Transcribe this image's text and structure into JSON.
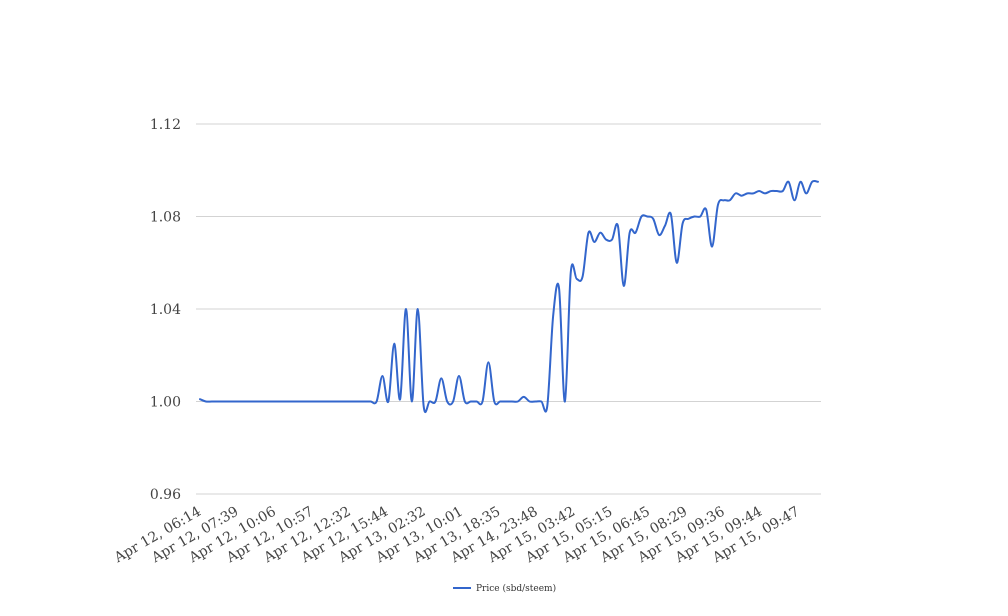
{
  "chart_data": {
    "type": "line",
    "title": "",
    "xlabel": "",
    "ylabel": "",
    "ylim": [
      0.96,
      1.12
    ],
    "yticks": [
      "0.96",
      "1.00",
      "1.04",
      "1.08",
      "1.12"
    ],
    "grid": true,
    "legend_position": "bottom",
    "x_tick_labels": [
      "Apr 12, 06:14",
      "Apr 12, 07:39",
      "Apr 12, 10:06",
      "Apr 12, 10:57",
      "Apr 12, 12:32",
      "Apr 12, 15:44",
      "Apr 13, 02:32",
      "Apr 13, 10:01",
      "Apr 13, 18:35",
      "Apr 14, 23:48",
      "Apr 15, 03:42",
      "Apr 15, 05:15",
      "Apr 15, 06:45",
      "Apr 15, 08:29",
      "Apr 15, 09:36",
      "Apr 15, 09:44",
      "Apr 15, 09:47"
    ],
    "series": [
      {
        "name": "Price (sbd/steem)",
        "color": "#3366cc",
        "values": [
          1.001,
          1.0,
          1.0,
          1.0,
          1.0,
          1.0,
          1.0,
          1.0,
          1.0,
          1.0,
          1.0,
          1.0,
          1.0,
          1.0,
          1.0,
          1.0,
          1.0,
          1.0,
          1.0,
          1.0,
          1.0,
          1.0,
          1.0,
          1.0,
          1.0,
          1.0,
          1.0,
          1.0,
          1.0,
          1.0,
          1.0,
          1.011,
          1.0,
          1.025,
          1.001,
          1.04,
          1.0,
          1.04,
          0.998,
          1.0,
          1.0,
          1.01,
          1.0,
          1.0,
          1.011,
          1.0,
          1.0,
          1.0,
          1.0,
          1.017,
          1.0,
          1.0,
          1.0,
          1.0,
          1.0,
          1.002,
          1.0,
          1.0,
          1.0,
          0.998,
          1.037,
          1.049,
          1.0,
          1.056,
          1.053,
          1.054,
          1.073,
          1.069,
          1.073,
          1.07,
          1.07,
          1.076,
          1.05,
          1.073,
          1.073,
          1.08,
          1.08,
          1.079,
          1.072,
          1.076,
          1.081,
          1.06,
          1.077,
          1.079,
          1.08,
          1.08,
          1.083,
          1.067,
          1.085,
          1.087,
          1.087,
          1.09,
          1.089,
          1.09,
          1.09,
          1.091,
          1.09,
          1.091,
          1.091,
          1.091,
          1.095,
          1.087,
          1.095,
          1.09,
          1.095,
          1.095
        ]
      }
    ]
  }
}
